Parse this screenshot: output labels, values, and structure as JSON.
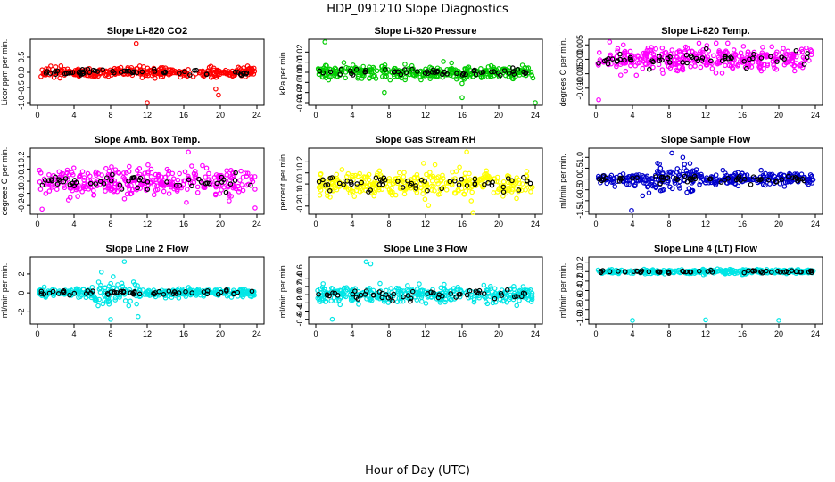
{
  "figure": {
    "title": "HDP_091210  Slope Diagnostics",
    "xlabel": "Hour of Day (UTC)"
  },
  "chart_data": [
    {
      "type": "scatter",
      "title": "Slope Li-820 CO2",
      "ylabel": "Licor ppm per min.",
      "color": "#ff0000",
      "xlim": [
        0,
        24
      ],
      "xticks": [
        0,
        4,
        8,
        12,
        16,
        20,
        24
      ],
      "ylim": [
        -1.0,
        1.0
      ],
      "yticks": [
        -1.0,
        -0.5,
        0.0,
        0.5
      ],
      "ytick_labels": [
        "-1.0",
        "-0.5",
        "0.0",
        "0.5"
      ],
      "spread": 0.14,
      "outliers": [
        [
          10.8,
          0.95
        ],
        [
          12.0,
          -1.0
        ],
        [
          19.5,
          -0.55
        ],
        [
          19.8,
          -0.75
        ]
      ]
    },
    {
      "type": "scatter",
      "title": "Slope Li-820 Pressure",
      "ylabel": "kPa per min.",
      "color": "#00cc00",
      "xlim": [
        0,
        24
      ],
      "xticks": [
        0,
        4,
        8,
        12,
        16,
        20,
        24
      ],
      "ylim": [
        -0.03,
        0.03
      ],
      "yticks": [
        -0.03,
        -0.02,
        -0.01,
        0.0,
        0.01,
        0.02
      ],
      "ytick_labels": [
        "-0.03",
        "-0.02",
        "-0.01",
        "0.00",
        "0.01",
        "0.02"
      ],
      "spread": 0.006,
      "outliers": [
        [
          1.0,
          0.03
        ],
        [
          24.0,
          -0.03
        ],
        [
          16.0,
          -0.025
        ],
        [
          7.5,
          -0.02
        ]
      ]
    },
    {
      "type": "scatter",
      "title": "Slope Li-820 Temp.",
      "ylabel": "degrees C per min.",
      "color": "#ff00ff",
      "xlim": [
        0,
        24
      ],
      "xticks": [
        0,
        4,
        8,
        12,
        16,
        20,
        24
      ],
      "ylim": [
        -0.015,
        0.006
      ],
      "yticks": [
        -0.01,
        -0.005,
        0.0,
        0.005
      ],
      "ytick_labels": [
        "-0.010",
        "-0.005",
        "0.000",
        "0.005"
      ],
      "spread": 0.004,
      "outliers": [
        [
          0.3,
          -0.014
        ],
        [
          1.5,
          0.006
        ],
        [
          3.0,
          0.005
        ]
      ]
    },
    {
      "type": "scatter",
      "title": "Slope Amb. Box Temp.",
      "ylabel": "degrees C per min.",
      "color": "#ff00ff",
      "xlim": [
        0,
        24
      ],
      "xticks": [
        0,
        4,
        8,
        12,
        16,
        20,
        24
      ],
      "ylim": [
        -0.25,
        0.25
      ],
      "yticks": [
        -0.2,
        -0.1,
        0.0,
        0.1,
        0.2
      ],
      "ytick_labels": [
        "-0.2",
        "-0.1",
        "0.0",
        "0.1",
        "0.2"
      ],
      "spread": 0.1,
      "outliers": [
        [
          0.5,
          -0.23
        ],
        [
          16.5,
          0.24
        ],
        [
          23.8,
          -0.22
        ]
      ]
    },
    {
      "type": "scatter",
      "title": "Slope Gas Stream RH",
      "ylabel": "percent per min.",
      "color": "#ffff00",
      "xlim": [
        0,
        24
      ],
      "xticks": [
        0,
        4,
        8,
        12,
        16,
        20,
        24
      ],
      "ylim": [
        -0.25,
        0.3
      ],
      "yticks": [
        -0.2,
        -0.1,
        0.0,
        0.1,
        0.2
      ],
      "ytick_labels": [
        "-0.2",
        "-0.1",
        "0.0",
        "0.1",
        "0.2"
      ],
      "spread": 0.11,
      "outliers": [
        [
          16.5,
          0.29
        ],
        [
          17.2,
          -0.26
        ]
      ]
    },
    {
      "type": "scatter",
      "title": "Slope Sample Flow",
      "ylabel": "ml/min per min.",
      "color": "#0000cc",
      "xlim": [
        0,
        24
      ],
      "xticks": [
        0,
        4,
        8,
        12,
        16,
        20,
        24
      ],
      "ylim": [
        -1.5,
        1.3
      ],
      "yticks": [
        -1.5,
        -1.0,
        -0.5,
        0.0,
        0.5,
        1.0
      ],
      "ytick_labels": [
        "-1.5",
        "-1.0",
        "-0.5",
        "0.0",
        "0.5",
        "1.0"
      ],
      "spread": 0.25,
      "outliers": [
        [
          3.9,
          -1.45
        ],
        [
          8.3,
          1.2
        ],
        [
          9.5,
          1.0
        ]
      ]
    },
    {
      "type": "scatter",
      "title": "Slope Line 2 Flow",
      "ylabel": "ml/min per min.",
      "color": "#00e6e6",
      "xlim": [
        0,
        24
      ],
      "xticks": [
        0,
        4,
        8,
        12,
        16,
        20,
        24
      ],
      "ylim": [
        -3.0,
        3.5
      ],
      "yticks": [
        -2,
        0,
        2
      ],
      "ytick_labels": [
        "-2",
        "0",
        "2"
      ],
      "spread": 0.4,
      "outliers": [
        [
          9.5,
          3.3
        ],
        [
          8.0,
          -2.8
        ],
        [
          11.0,
          -2.5
        ],
        [
          7.0,
          2.2
        ]
      ]
    },
    {
      "type": "scatter",
      "title": "Slope Line 3 Flow",
      "ylabel": "ml/min per min.",
      "color": "#00e6e6",
      "xlim": [
        0,
        24
      ],
      "xticks": [
        0,
        4,
        8,
        12,
        16,
        20,
        24
      ],
      "ylim": [
        -0.65,
        0.85
      ],
      "yticks": [
        -0.6,
        -0.4,
        -0.2,
        0.0,
        0.2,
        0.4,
        0.6
      ],
      "ytick_labels": [
        "-0.6",
        "-0.4",
        "-0.2",
        "0.0",
        "0.2",
        "0.4",
        "0.6"
      ],
      "spread": 0.18,
      "outliers": [
        [
          5.5,
          0.8
        ],
        [
          6.0,
          0.75
        ],
        [
          1.8,
          -0.6
        ]
      ]
    },
    {
      "type": "scatter",
      "title": "Slope Line 4 (LT) Flow",
      "ylabel": "ml/min per min.",
      "color": "#00e6e6",
      "xlim": [
        0,
        24
      ],
      "xticks": [
        0,
        4,
        8,
        12,
        16,
        20,
        24
      ],
      "ylim": [
        -1.05,
        0.25
      ],
      "yticks": [
        -1.0,
        -0.8,
        -0.6,
        -0.4,
        -0.2,
        0.0,
        0.2
      ],
      "ytick_labels": [
        "-1.0",
        "-0.8",
        "-0.6",
        "-0.4",
        "-0.2",
        "0.0",
        "0.2"
      ],
      "spread": 0.04,
      "outliers": [
        [
          4.0,
          -1.03
        ],
        [
          12.0,
          -1.02
        ],
        [
          20.0,
          -1.03
        ]
      ]
    }
  ]
}
